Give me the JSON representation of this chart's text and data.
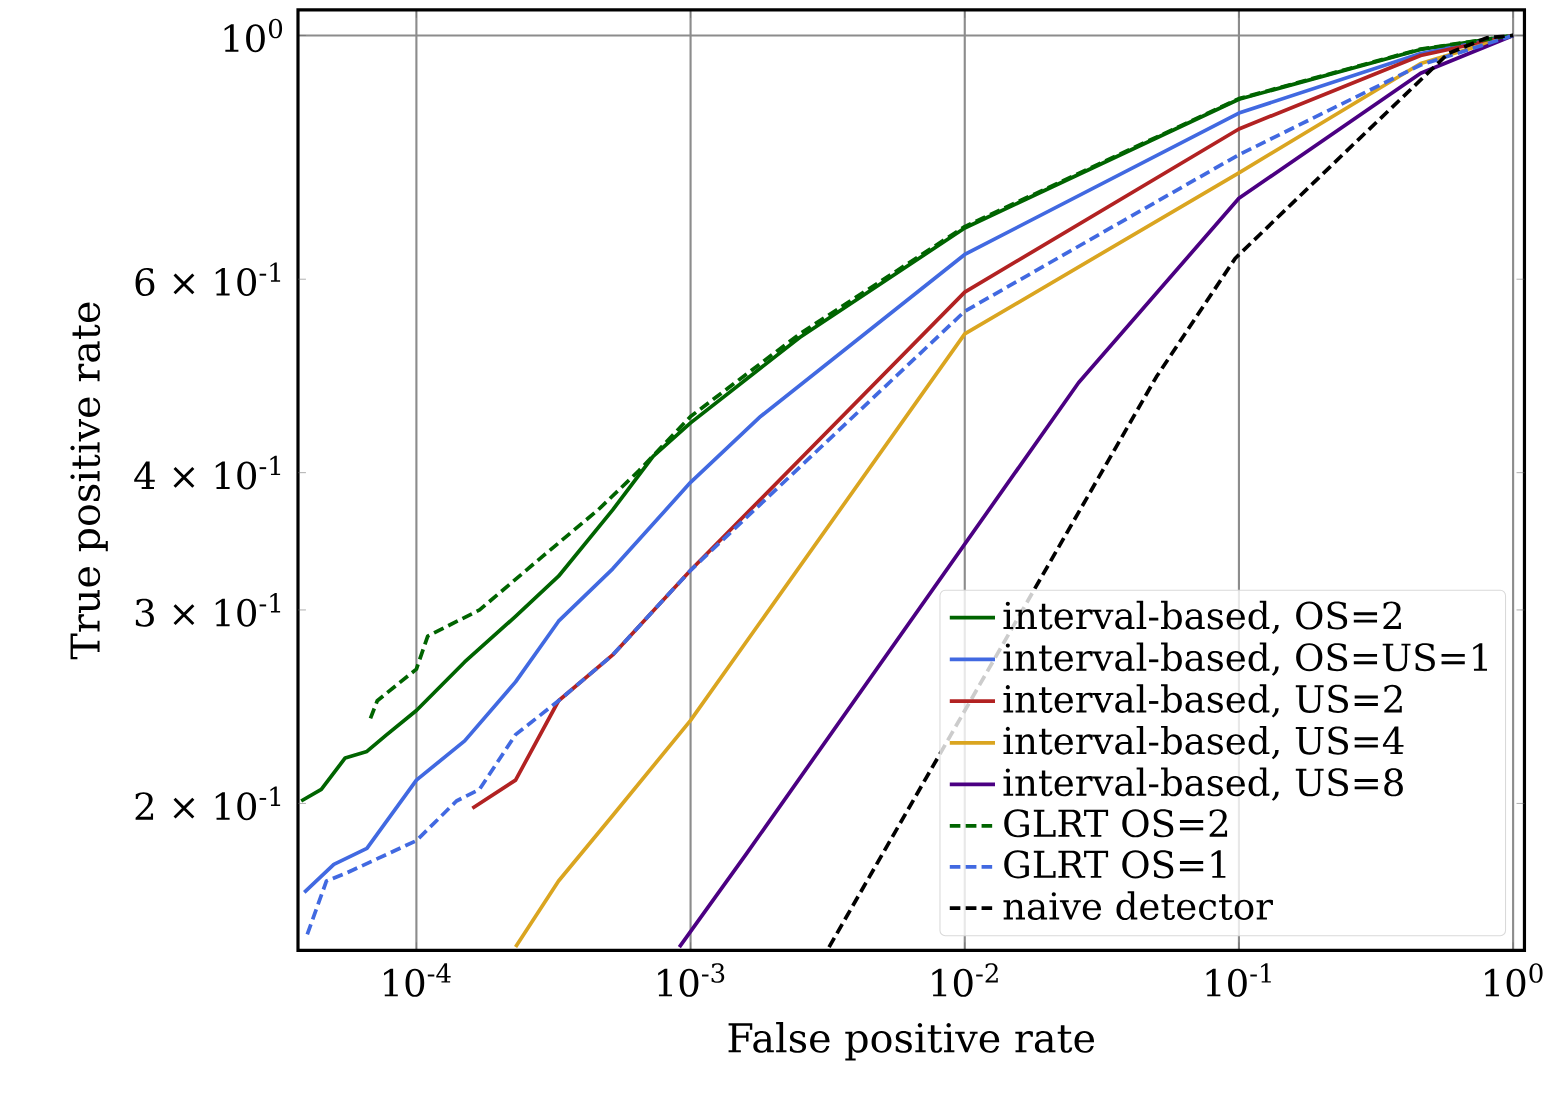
{
  "chart_data": {
    "type": "line",
    "xlabel": "False positive rate",
    "ylabel": "True positive rate",
    "log": "xy",
    "grid": true,
    "legend": "bottom right",
    "xlim": [
      3.7e-05,
      1.1
    ],
    "ylim": [
      0.147,
      1.055
    ],
    "xticks": [
      {
        "value": 0.0001,
        "label": "10$^{-4}$"
      },
      {
        "value": 0.001,
        "label": "10$^{-3}$"
      },
      {
        "value": 0.01,
        "label": "10$^{-2}$"
      },
      {
        "value": 0.1,
        "label": "10$^{-1}$"
      },
      {
        "value": 1,
        "label": "10$^{0}$"
      }
    ],
    "yticks": [
      {
        "value": 0.2,
        "label": "2 × 10$^{-1}$"
      },
      {
        "value": 0.3,
        "label": "3 × 10$^{-1}$"
      },
      {
        "value": 0.4,
        "label": "4 × 10$^{-1}$"
      },
      {
        "value": 0.6,
        "label": "6 × 10$^{-1}$"
      },
      {
        "value": 1,
        "label": "10$^{0}$"
      }
    ],
    "series": [
      {
        "name": "interval-based, OS=2",
        "color": "#006400",
        "line_style": "solid",
        "x": [
          3.8e-05,
          4.5e-05,
          5.5e-05,
          6.6e-05,
          7.8e-05,
          0.0001,
          0.00015,
          0.00023,
          0.00033,
          0.00052,
          0.00073,
          0.001,
          0.0025,
          0.01,
          0.1,
          0.46,
          0.95,
          1
        ],
        "values": [
          0.201,
          0.206,
          0.22,
          0.223,
          0.231,
          0.243,
          0.269,
          0.296,
          0.322,
          0.37,
          0.414,
          0.444,
          0.531,
          0.668,
          0.875,
          0.971,
          0.998,
          1
        ]
      },
      {
        "name": "interval-based, OS=US=1",
        "color": "#4169e1",
        "line_style": "solid",
        "x": [
          3.9e-05,
          5e-05,
          6.6e-05,
          0.0001,
          0.00015,
          0.00023,
          0.00033,
          0.00052,
          0.001,
          0.0018,
          0.01,
          0.1,
          0.46,
          1
        ],
        "values": [
          0.166,
          0.176,
          0.182,
          0.21,
          0.228,
          0.258,
          0.293,
          0.327,
          0.392,
          0.45,
          0.632,
          0.85,
          0.963,
          1
        ]
      },
      {
        "name": "interval-based, US=2",
        "color": "#b22222",
        "line_style": "solid",
        "x": [
          0.00016,
          0.00023,
          0.00033,
          0.00052,
          0.001,
          0.01,
          0.1,
          0.46,
          1
        ],
        "values": [
          0.198,
          0.21,
          0.248,
          0.273,
          0.326,
          0.584,
          0.822,
          0.959,
          1
        ]
      },
      {
        "name": "interval-based, US=4",
        "color": "#daa520",
        "line_style": "solid",
        "x": [
          0.00023,
          0.00033,
          0.00052,
          0.001,
          0.01,
          0.1,
          0.46,
          1
        ],
        "values": [
          0.148,
          0.17,
          0.195,
          0.238,
          0.535,
          0.75,
          0.943,
          1
        ]
      },
      {
        "name": "interval-based, US=8",
        "color": "#4b0082",
        "line_style": "solid",
        "x": [
          0.00091,
          0.0016,
          0.026,
          0.1,
          0.46,
          1
        ],
        "values": [
          0.148,
          0.18,
          0.483,
          0.711,
          0.924,
          1
        ]
      },
      {
        "name": "GLRT OS=2",
        "color": "#006400",
        "line_style": "dashed",
        "x": [
          6.8e-05,
          7.2e-05,
          0.0001,
          0.00011,
          0.00017,
          0.00029,
          0.00046,
          0.00065,
          0.001,
          0.0025,
          0.01,
          0.1,
          0.46,
          1
        ],
        "values": [
          0.239,
          0.248,
          0.265,
          0.284,
          0.3,
          0.336,
          0.37,
          0.402,
          0.45,
          0.535,
          0.67,
          0.876,
          0.972,
          1
        ]
      },
      {
        "name": "GLRT OS=1",
        "color": "#4169e1",
        "line_style": "dashed",
        "x": [
          4e-05,
          4.7e-05,
          5.6e-05,
          0.0001,
          0.00014,
          0.00017,
          0.00023,
          0.00033,
          0.00052,
          0.001,
          0.01,
          0.1,
          0.46,
          1
        ],
        "values": [
          0.152,
          0.17,
          0.173,
          0.185,
          0.201,
          0.206,
          0.231,
          0.248,
          0.273,
          0.326,
          0.561,
          0.779,
          0.94,
          1
        ]
      },
      {
        "name": "naive detector",
        "color": "#000000",
        "line_style": "dashed",
        "x": [
          0.0032,
          0.05,
          0.097,
          0.26,
          0.58,
          0.8,
          1
        ],
        "values": [
          0.148,
          0.489,
          0.627,
          0.795,
          0.963,
          0.995,
          1
        ]
      }
    ]
  }
}
